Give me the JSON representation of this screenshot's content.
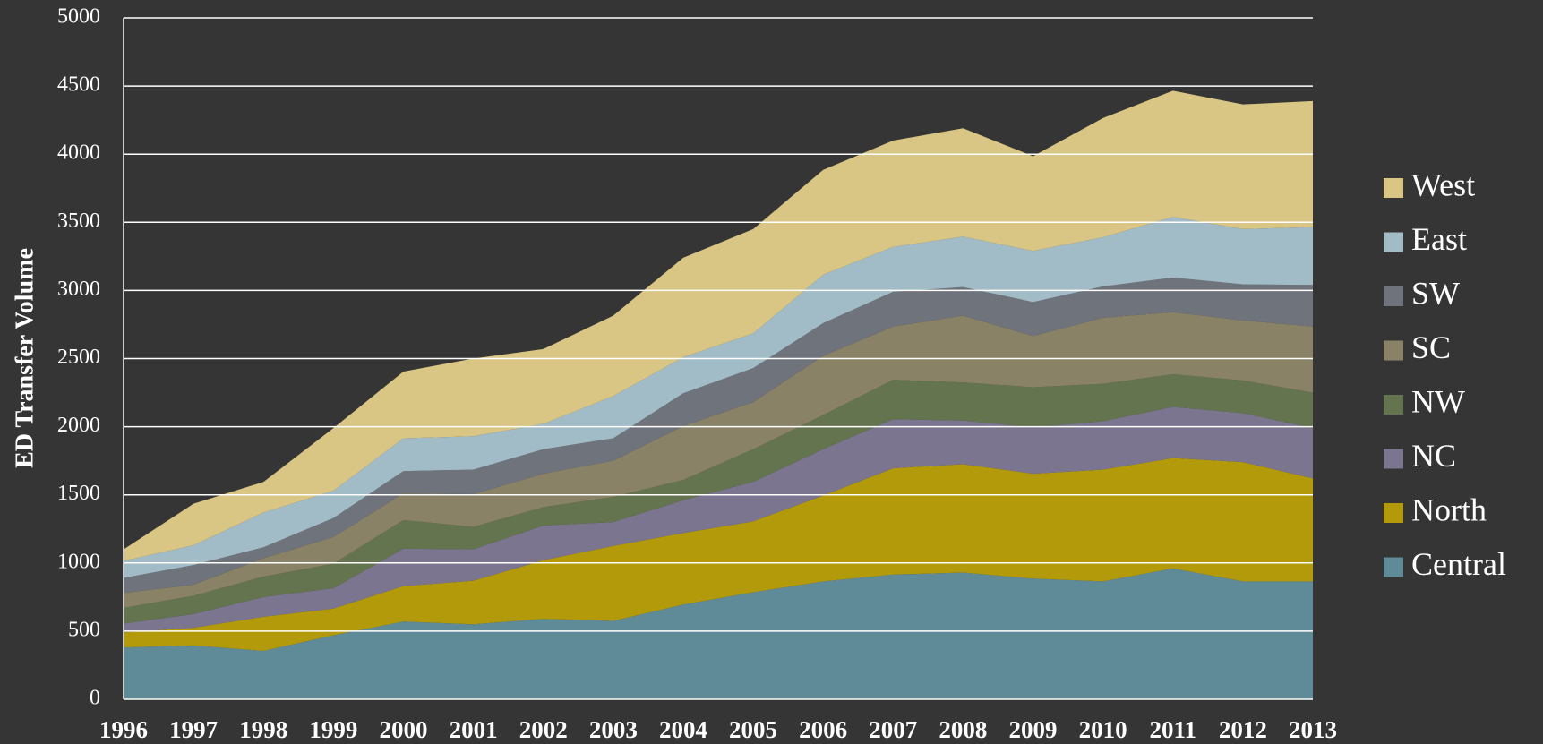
{
  "chart_data": {
    "type": "stacked-area",
    "y_label": "ED Transfer Volume",
    "categories": [
      "1996",
      "1997",
      "1998",
      "1999",
      "2000",
      "2001",
      "2002",
      "2003",
      "2004",
      "2005",
      "2006",
      "2007",
      "2008",
      "2009",
      "2010",
      "2011",
      "2012",
      "2013"
    ],
    "series": [
      {
        "name": "Central",
        "color": "#5f8a97",
        "values": [
          380,
          395,
          355,
          470,
          570,
          550,
          590,
          575,
          695,
          785,
          865,
          915,
          930,
          885,
          865,
          960,
          865,
          865
        ]
      },
      {
        "name": "North",
        "color": "#b29a0a",
        "values": [
          110,
          130,
          250,
          195,
          260,
          320,
          430,
          550,
          525,
          520,
          630,
          780,
          795,
          770,
          820,
          810,
          875,
          755
        ]
      },
      {
        "name": "NC",
        "color": "#7b7590",
        "values": [
          65,
          100,
          145,
          150,
          275,
          230,
          255,
          175,
          240,
          290,
          340,
          360,
          320,
          340,
          355,
          375,
          360,
          370
        ]
      },
      {
        "name": "NW",
        "color": "#64744f",
        "values": [
          115,
          135,
          150,
          180,
          210,
          165,
          135,
          185,
          150,
          240,
          250,
          290,
          280,
          295,
          275,
          240,
          240,
          260
        ]
      },
      {
        "name": "SC",
        "color": "#8a8266",
        "values": [
          110,
          80,
          135,
          195,
          195,
          240,
          245,
          265,
          395,
          345,
          435,
          390,
          490,
          375,
          485,
          455,
          440,
          485
        ]
      },
      {
        "name": "SW",
        "color": "#6f737b",
        "values": [
          110,
          145,
          80,
          140,
          165,
          180,
          180,
          165,
          240,
          250,
          240,
          255,
          210,
          250,
          230,
          255,
          265,
          305
        ]
      },
      {
        "name": "East",
        "color": "#a1bcc7",
        "values": [
          125,
          145,
          255,
          200,
          240,
          245,
          185,
          310,
          265,
          255,
          355,
          330,
          370,
          375,
          360,
          445,
          405,
          425
        ]
      },
      {
        "name": "West",
        "color": "#d9c584",
        "values": [
          85,
          305,
          225,
          460,
          490,
          570,
          550,
          590,
          730,
          765,
          770,
          780,
          795,
          695,
          875,
          925,
          915,
          925
        ]
      }
    ],
    "ylim": [
      0,
      5000
    ],
    "yticks": [
      0,
      500,
      1000,
      1500,
      2000,
      2500,
      3000,
      3500,
      4000,
      4500,
      5000
    ],
    "grid": true,
    "legend": "right"
  }
}
